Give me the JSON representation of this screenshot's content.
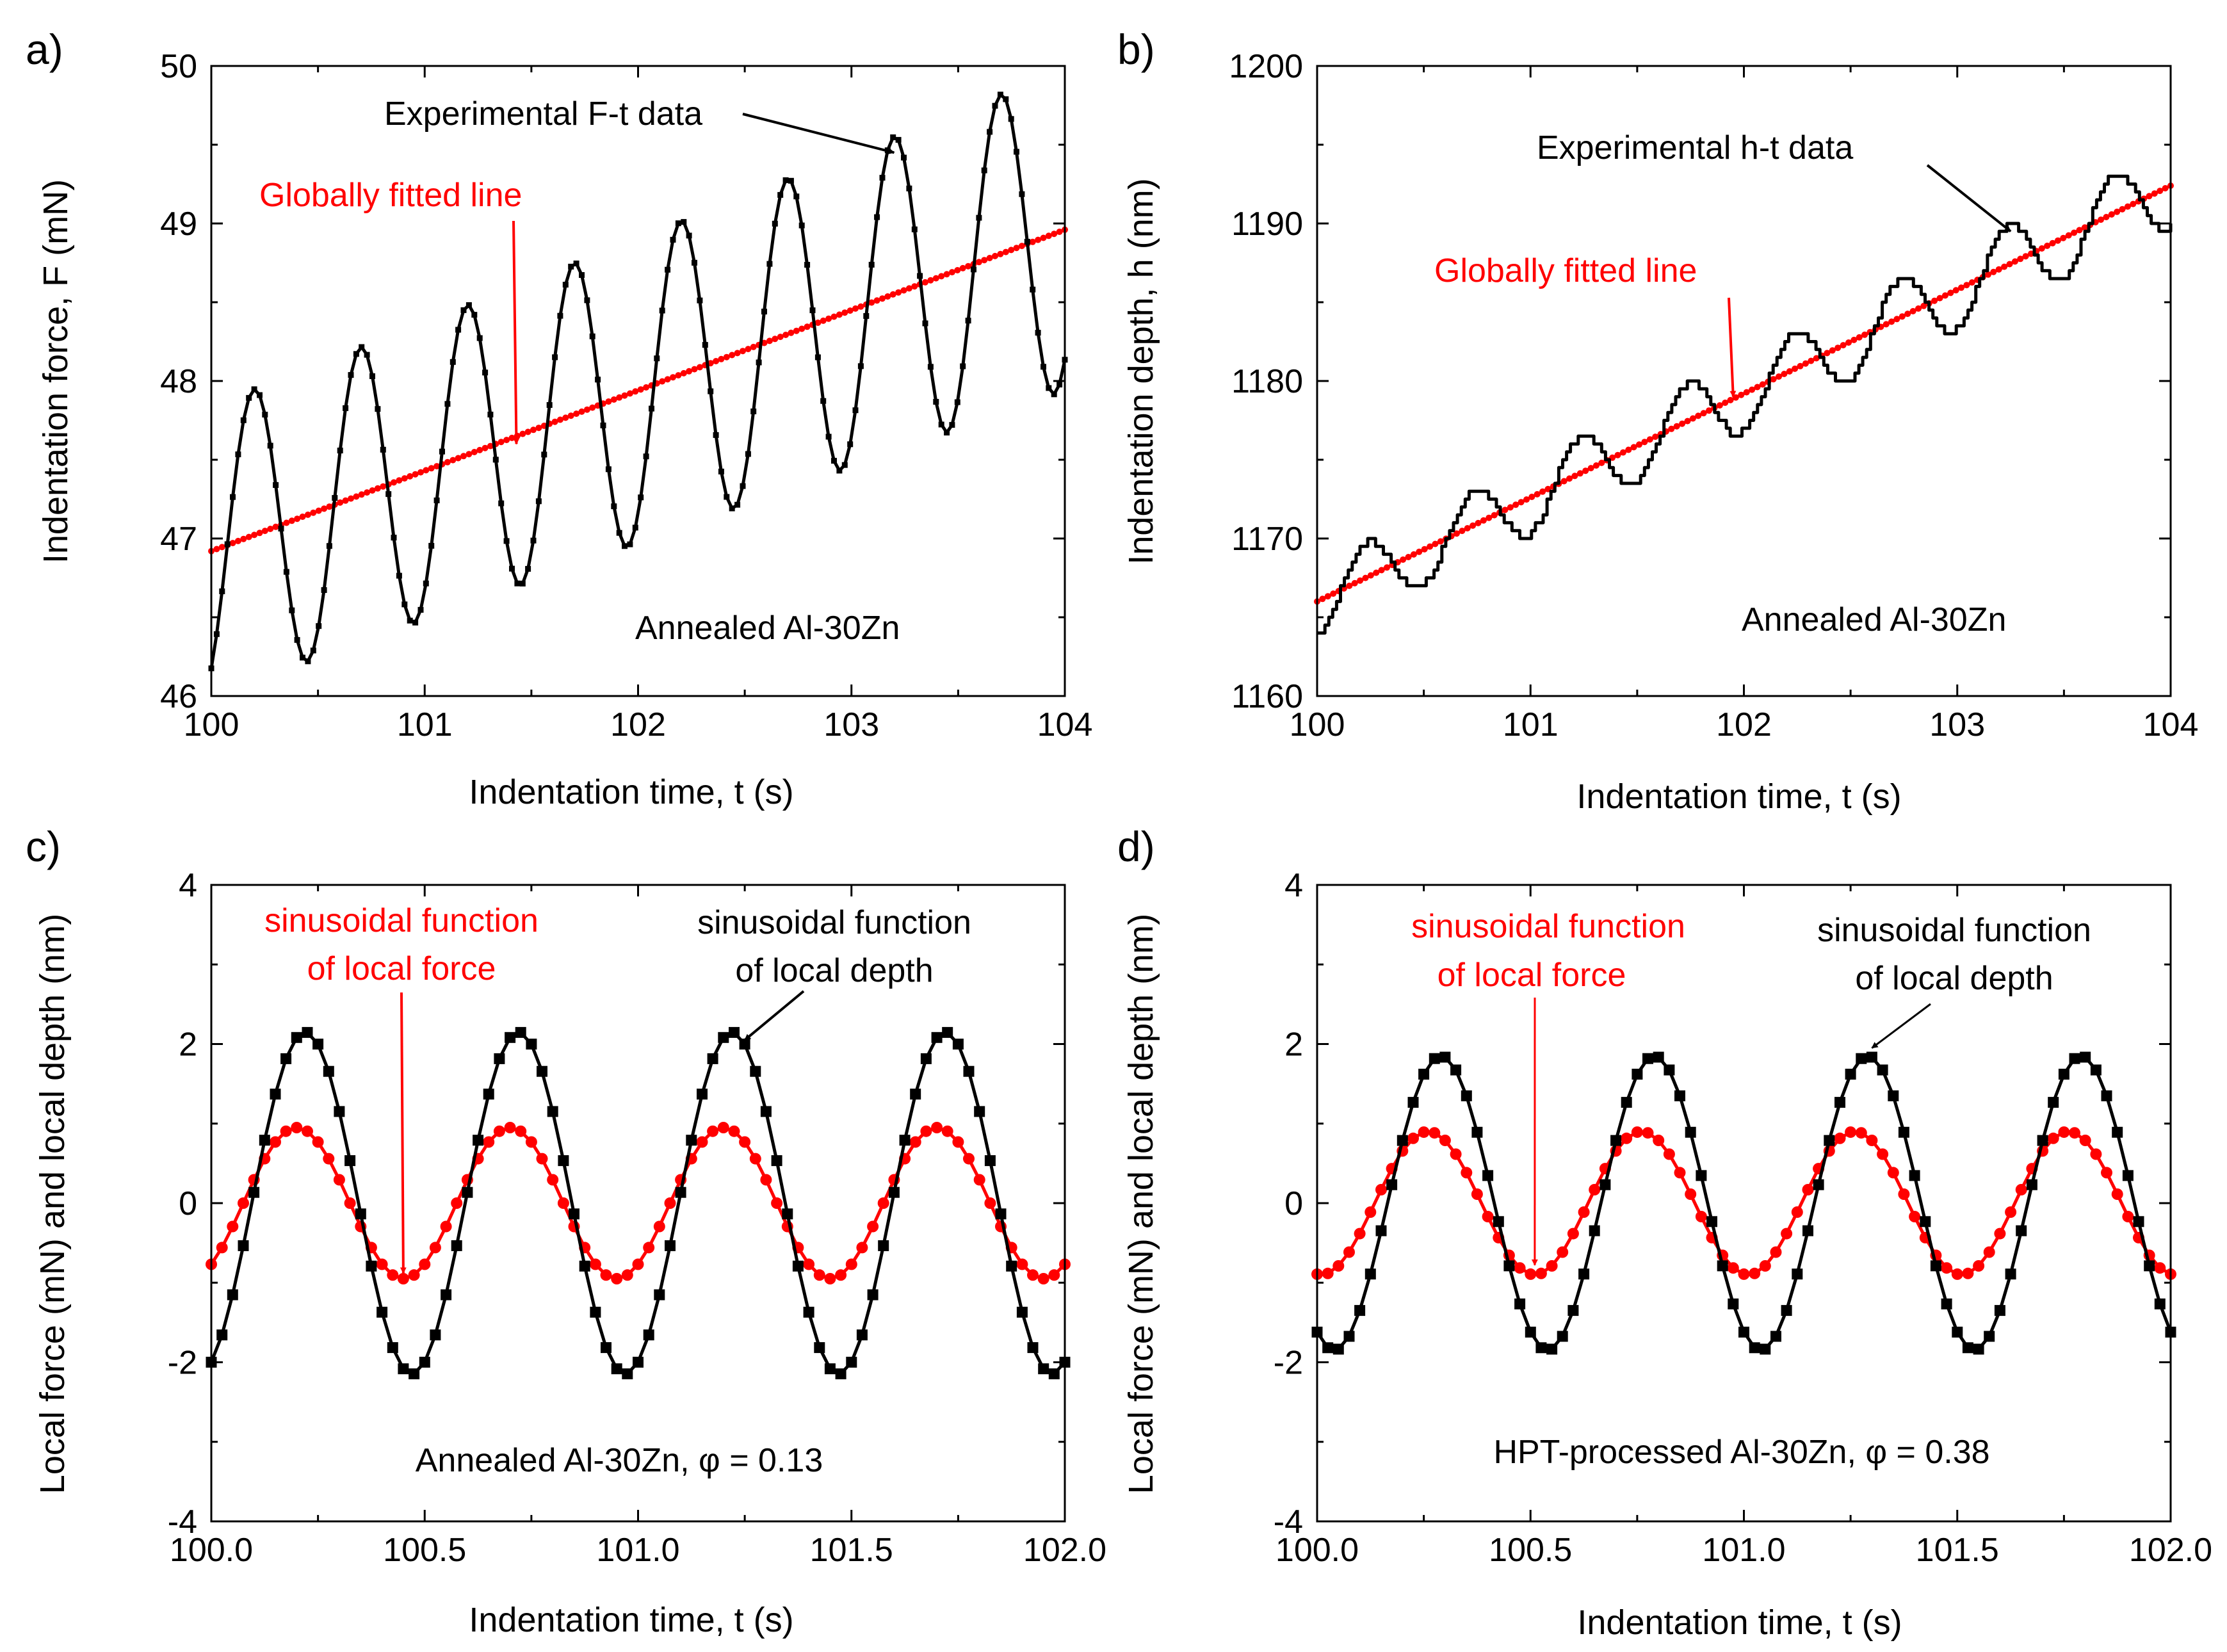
{
  "colors": {
    "experimental": "#000000",
    "fit": "#ff0000",
    "axes": "#000000",
    "background": "#ffffff"
  },
  "chart_data": [
    {
      "panel": "a)",
      "type": "line",
      "xlabel": "Indentation time, t (s)",
      "ylabel": "Indentation force, F (mN)",
      "xlim": [
        100,
        104
      ],
      "ylim": [
        46,
        50
      ],
      "xticks": [
        "100",
        "101",
        "102",
        "103",
        "104"
      ],
      "yticks": [
        "46",
        "47",
        "48",
        "49",
        "50"
      ],
      "series": [
        {
          "name": "Experimental F-t data",
          "color": "#000000",
          "marker": "square",
          "model": "trend_plus_sine",
          "x_start": 100,
          "x_end": 104,
          "points": 160,
          "trend_intercept": 46.92,
          "trend_slope": 0.51,
          "amplitude": 0.92,
          "amplitude_growth": 0.025,
          "period": 0.5,
          "peak_x": 100.2
        },
        {
          "name": "Globally fitted line",
          "color": "#ff0000",
          "marker": "circle",
          "model": "linear",
          "x_start": 100,
          "x_end": 104,
          "points": 160,
          "intercept": 46.92,
          "slope": 0.51
        }
      ],
      "annotations": [
        {
          "text": "Experimental F-t data",
          "color": "#000000",
          "target": [
            103.2,
            49.45
          ]
        },
        {
          "text": "Globally fitted line",
          "color": "#ff0000",
          "target": [
            101.43,
            47.6
          ]
        },
        {
          "text": "Annealed Al-30Zn",
          "color": "#000000"
        }
      ]
    },
    {
      "panel": "b)",
      "type": "line",
      "xlabel": "Indentation time, t (s)",
      "ylabel": "Indentation depth, h (nm)",
      "xlim": [
        100,
        104
      ],
      "ylim": [
        1160,
        1200
      ],
      "xticks": [
        "100",
        "101",
        "102",
        "103",
        "104"
      ],
      "yticks": [
        "1160",
        "1170",
        "1180",
        "1190",
        "1200"
      ],
      "series": [
        {
          "name": "Experimental h-t data",
          "color": "#000000",
          "marker": "step",
          "model": "trend_plus_sine",
          "x_start": 100,
          "x_end": 104,
          "points": 220,
          "trend_intercept": 1166,
          "trend_slope": 6.6,
          "amplitude": 2.2,
          "amplitude_growth": 0.1,
          "period": 0.5,
          "peak_x": 100.23
        },
        {
          "name": "Globally fitted line",
          "color": "#ff0000",
          "marker": "circle",
          "model": "linear",
          "x_start": 100,
          "x_end": 104,
          "points": 160,
          "intercept": 1166,
          "slope": 6.6
        }
      ],
      "annotations": [
        {
          "text": "Experimental h-t data",
          "color": "#000000",
          "target": [
            103.25,
            1189.5
          ]
        },
        {
          "text": "Globally fitted line",
          "color": "#ff0000",
          "target": [
            101.95,
            1179.0
          ]
        },
        {
          "text": "Annealed Al-30Zn",
          "color": "#000000"
        }
      ]
    },
    {
      "panel": "c)",
      "type": "line",
      "xlabel": "Indentation time, t (s)",
      "ylabel": "Local force (mN) and local depth (nm)",
      "xlim": [
        100.0,
        102.0
      ],
      "ylim": [
        -4,
        4
      ],
      "xticks": [
        "100.0",
        "100.5",
        "101.0",
        "101.5",
        "102.0"
      ],
      "yticks": [
        "-4",
        "-2",
        "0",
        "2",
        "4"
      ],
      "series": [
        {
          "name": "sinusoidal function of local depth",
          "color": "#000000",
          "marker": "square",
          "model": "sine",
          "x_start": 100,
          "x_end": 102,
          "points": 81,
          "amplitude": 2.15,
          "period": 0.5,
          "peak_x": 100.22
        },
        {
          "name": "sinusoidal function of local force",
          "color": "#ff0000",
          "marker": "circle",
          "model": "sine",
          "x_start": 100,
          "x_end": 102,
          "points": 81,
          "amplitude": 0.95,
          "period": 0.5,
          "peak_x": 100.2
        }
      ],
      "annotations": [
        {
          "text": "sinusoidal function",
          "color": "#ff0000",
          "target": [
            100.45,
            -0.88
          ]
        },
        {
          "text": "of local force",
          "color": "#ff0000"
        },
        {
          "text": "sinusoidal function",
          "color": "#000000",
          "target": [
            101.25,
            2.05
          ]
        },
        {
          "text": "of local depth",
          "color": "#000000"
        },
        {
          "text": "Annealed Al-30Zn, φ = 0.13",
          "color": "#000000"
        }
      ]
    },
    {
      "panel": "d)",
      "type": "line",
      "xlabel": "Indentation time, t (s)",
      "ylabel": "Local force (mN) and local depth (nm)",
      "xlim": [
        100.0,
        102.0
      ],
      "ylim": [
        -4,
        4
      ],
      "xticks": [
        "100.0",
        "100.5",
        "101.0",
        "101.5",
        "102.0"
      ],
      "yticks": [
        "-4",
        "-2",
        "0",
        "2",
        "4"
      ],
      "series": [
        {
          "name": "sinusoidal function of local depth",
          "color": "#000000",
          "marker": "square",
          "model": "sine",
          "x_start": 100,
          "x_end": 102,
          "points": 81,
          "amplitude": 1.85,
          "period": 0.5,
          "peak_x": 100.29
        },
        {
          "name": "sinusoidal function of local force",
          "color": "#ff0000",
          "marker": "circle",
          "model": "sine",
          "x_start": 100,
          "x_end": 102,
          "points": 81,
          "amplitude": 0.9,
          "period": 0.5,
          "peak_x": 100.26
        }
      ],
      "annotations": [
        {
          "text": "sinusoidal function",
          "color": "#ff0000",
          "target": [
            100.51,
            -0.78
          ]
        },
        {
          "text": "of local force",
          "color": "#ff0000"
        },
        {
          "text": "sinusoidal function",
          "color": "#000000",
          "target": [
            101.3,
            1.95
          ]
        },
        {
          "text": "of local depth",
          "color": "#000000"
        },
        {
          "text": "HPT-processed Al-30Zn, φ = 0.38",
          "color": "#000000"
        }
      ]
    }
  ]
}
